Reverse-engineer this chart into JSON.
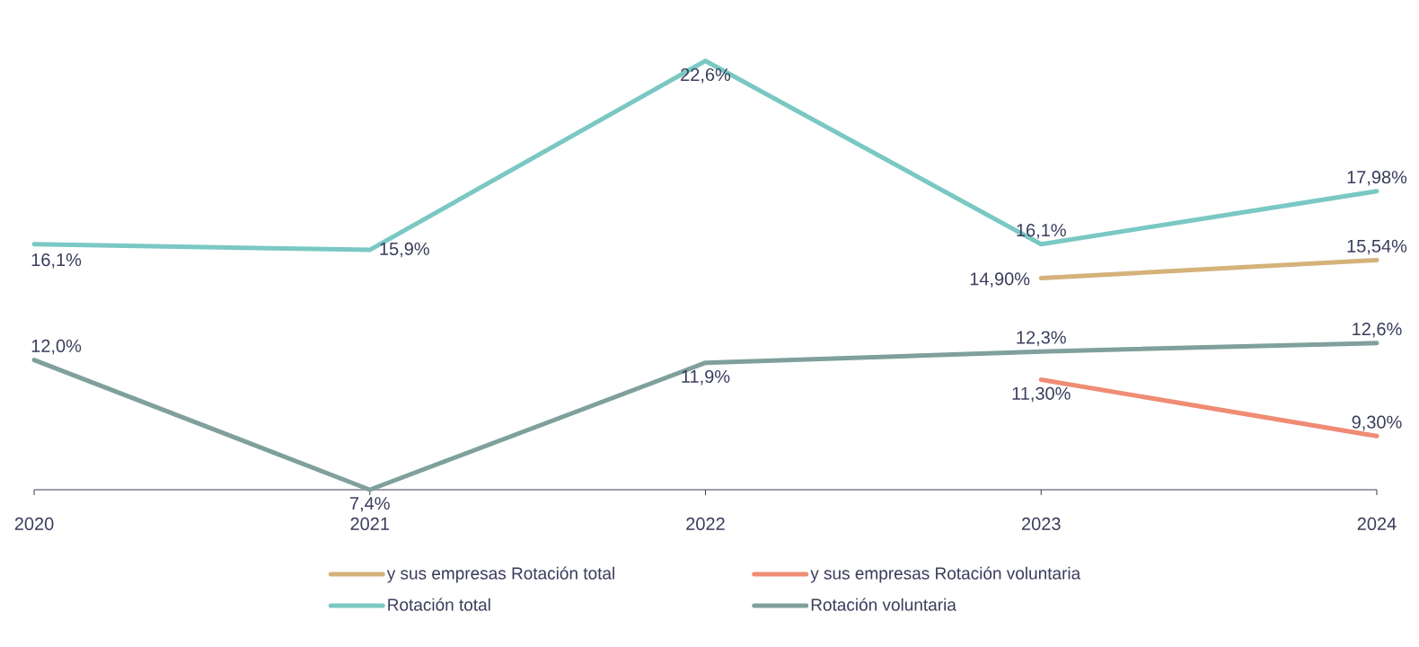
{
  "chart_data": {
    "type": "line",
    "categories": [
      "2020",
      "2021",
      "2022",
      "2023",
      "2024"
    ],
    "tick_labels": "x",
    "legend": "bottom",
    "line_style": "solid",
    "series": [
      {
        "name": "y sus empresas Rotación total",
        "color": "#d4b27a",
        "values": [
          null,
          null,
          null,
          14.9,
          15.54
        ],
        "value_labels": [
          null,
          null,
          null,
          "14,90%",
          "15,54%"
        ]
      },
      {
        "name": "y sus empresas Rotación voluntaria",
        "color": "#ef8c74",
        "values": [
          null,
          null,
          null,
          11.3,
          9.3
        ],
        "value_labels": [
          null,
          null,
          null,
          "11,30%",
          "9,30%"
        ]
      },
      {
        "name": "Rotación total",
        "color": "#7ac8c4",
        "values": [
          16.1,
          15.9,
          22.6,
          16.1,
          17.98
        ],
        "value_labels": [
          "16,1%",
          "15,9%",
          "22,6%",
          "16,1%",
          "17,98%"
        ]
      },
      {
        "name": "Rotación voluntaria",
        "color": "#7fa09c",
        "values": [
          12.0,
          7.4,
          11.9,
          12.3,
          12.6
        ],
        "value_labels": [
          "12,0%",
          "7,4%",
          "11,9%",
          "12,3%",
          "12,6%"
        ]
      }
    ]
  }
}
